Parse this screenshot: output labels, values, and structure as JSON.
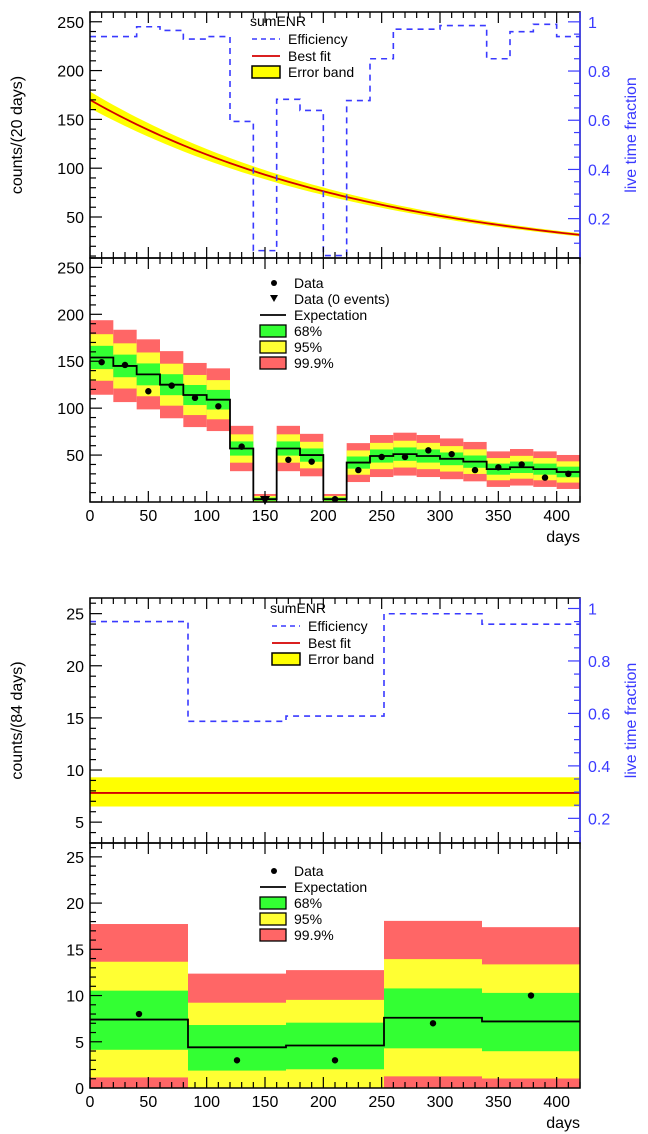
{
  "chart_data": [
    {
      "id": "top",
      "type": "line",
      "title": "sumENR",
      "ylabel": "counts/(20 days)",
      "y2label": "live time fraction",
      "xlabel": "",
      "xlim": [
        0,
        420
      ],
      "ylim": [
        8,
        260
      ],
      "y2lim": [
        0.04,
        1.04
      ],
      "yticks": [
        50,
        100,
        150,
        200,
        250
      ],
      "y2ticks": [
        "0.2",
        "0.4",
        "0.6",
        "0.8",
        "1"
      ],
      "legend": [
        "Efficiency",
        "Best fit",
        "Error band"
      ],
      "efficiency": [
        {
          "x0": 0,
          "x1": 20,
          "v": 0.94
        },
        {
          "x0": 20,
          "x1": 40,
          "v": 0.94
        },
        {
          "x0": 40,
          "x1": 60,
          "v": 0.98
        },
        {
          "x0": 60,
          "x1": 80,
          "v": 0.965
        },
        {
          "x0": 80,
          "x1": 100,
          "v": 0.93
        },
        {
          "x0": 100,
          "x1": 120,
          "v": 0.94
        },
        {
          "x0": 120,
          "x1": 140,
          "v": 0.595
        },
        {
          "x0": 140,
          "x1": 160,
          "v": 0.07
        },
        {
          "x0": 160,
          "x1": 180,
          "v": 0.685
        },
        {
          "x0": 180,
          "x1": 200,
          "v": 0.64
        },
        {
          "x0": 200,
          "x1": 220,
          "v": 0.05
        },
        {
          "x0": 220,
          "x1": 240,
          "v": 0.68
        },
        {
          "x0": 240,
          "x1": 260,
          "v": 0.85
        },
        {
          "x0": 260,
          "x1": 280,
          "v": 0.97
        },
        {
          "x0": 280,
          "x1": 300,
          "v": 0.97
        },
        {
          "x0": 300,
          "x1": 320,
          "v": 0.985
        },
        {
          "x0": 320,
          "x1": 340,
          "v": 0.985
        },
        {
          "x0": 340,
          "x1": 360,
          "v": 0.85
        },
        {
          "x0": 360,
          "x1": 380,
          "v": 0.96
        },
        {
          "x0": 380,
          "x1": 400,
          "v": 0.99
        },
        {
          "x0": 400,
          "x1": 420,
          "v": 0.94
        }
      ],
      "fit": {
        "kind": "exp",
        "a": 170,
        "tau": 250,
        "band": 0.05
      }
    },
    {
      "id": "bottom1",
      "type": "bar",
      "xlabel": "days",
      "xlim": [
        0,
        420
      ],
      "ylim": [
        0,
        260
      ],
      "xticks": [
        0,
        50,
        100,
        150,
        200,
        250,
        300,
        350,
        400
      ],
      "yticks": [
        50,
        100,
        150,
        200,
        250
      ],
      "legend": [
        "Data",
        "Data (0 events)",
        "Expectation",
        "68%",
        "95%",
        "99.9%"
      ],
      "bins": [
        {
          "x0": 0,
          "x1": 20,
          "exp": 154
        },
        {
          "x0": 20,
          "x1": 40,
          "exp": 145
        },
        {
          "x0": 40,
          "x1": 60,
          "exp": 136
        },
        {
          "x0": 60,
          "x1": 80,
          "exp": 125
        },
        {
          "x0": 80,
          "x1": 100,
          "exp": 114
        },
        {
          "x0": 100,
          "x1": 120,
          "exp": 109
        },
        {
          "x0": 120,
          "x1": 140,
          "exp": 57
        },
        {
          "x0": 140,
          "x1": 160,
          "exp": 3
        },
        {
          "x0": 160,
          "x1": 180,
          "exp": 57
        },
        {
          "x0": 180,
          "x1": 200,
          "exp": 50
        },
        {
          "x0": 200,
          "x1": 220,
          "exp": 3
        },
        {
          "x0": 220,
          "x1": 240,
          "exp": 42
        },
        {
          "x0": 240,
          "x1": 260,
          "exp": 49
        },
        {
          "x0": 260,
          "x1": 280,
          "exp": 51
        },
        {
          "x0": 280,
          "x1": 300,
          "exp": 49
        },
        {
          "x0": 300,
          "x1": 320,
          "exp": 46
        },
        {
          "x0": 320,
          "x1": 340,
          "exp": 43
        },
        {
          "x0": 340,
          "x1": 360,
          "exp": 35
        },
        {
          "x0": 360,
          "x1": 380,
          "exp": 37
        },
        {
          "x0": 380,
          "x1": 400,
          "exp": 35
        },
        {
          "x0": 400,
          "x1": 420,
          "exp": 32
        }
      ],
      "data": [
        {
          "x": 10,
          "y": 149
        },
        {
          "x": 30,
          "y": 146
        },
        {
          "x": 50,
          "y": 118
        },
        {
          "x": 70,
          "y": 124
        },
        {
          "x": 90,
          "y": 111
        },
        {
          "x": 110,
          "y": 102
        },
        {
          "x": 130,
          "y": 59
        },
        {
          "x": 170,
          "y": 45
        },
        {
          "x": 190,
          "y": 43
        },
        {
          "x": 210,
          "y": 3
        },
        {
          "x": 230,
          "y": 34
        },
        {
          "x": 250,
          "y": 48
        },
        {
          "x": 270,
          "y": 48
        },
        {
          "x": 290,
          "y": 55
        },
        {
          "x": 310,
          "y": 51
        },
        {
          "x": 330,
          "y": 34
        },
        {
          "x": 350,
          "y": 37
        },
        {
          "x": 370,
          "y": 40
        },
        {
          "x": 390,
          "y": 26
        },
        {
          "x": 410,
          "y": 30
        }
      ],
      "zero_events": [
        {
          "x": 150,
          "y": 0
        }
      ]
    },
    {
      "id": "top2",
      "type": "line",
      "title": "sumENR",
      "ylabel": "counts/(84 days)",
      "y2label": "live time fraction",
      "xlabel": "",
      "xlim": [
        0,
        420
      ],
      "ylim": [
        3,
        26.5
      ],
      "y2lim": [
        0.106,
        1.04
      ],
      "yticks": [
        5,
        10,
        15,
        20,
        25
      ],
      "y2ticks": [
        "0.2",
        "0.4",
        "0.6",
        "0.8",
        "1"
      ],
      "legend": [
        "Efficiency",
        "Best fit",
        "Error band"
      ],
      "efficiency": [
        {
          "x0": 0,
          "x1": 84,
          "v": 0.95
        },
        {
          "x0": 84,
          "x1": 168,
          "v": 0.57
        },
        {
          "x0": 168,
          "x1": 252,
          "v": 0.59
        },
        {
          "x0": 252,
          "x1": 336,
          "v": 0.98
        },
        {
          "x0": 336,
          "x1": 420,
          "v": 0.94
        }
      ],
      "fit": {
        "kind": "const",
        "a": 7.8,
        "lo": 6.5,
        "hi": 9.3
      }
    },
    {
      "id": "bottom2",
      "type": "bar",
      "xlabel": "days",
      "xlim": [
        0,
        420
      ],
      "ylim": [
        0,
        26.5
      ],
      "xticks": [
        0,
        50,
        100,
        150,
        200,
        250,
        300,
        350,
        400
      ],
      "yticks": [
        0,
        5,
        10,
        15,
        20,
        25
      ],
      "legend": [
        "Data",
        "Expectation",
        "68%",
        "95%",
        "99.9%"
      ],
      "bins": [
        {
          "x0": 0,
          "x1": 84,
          "exp": 7.4
        },
        {
          "x0": 84,
          "x1": 168,
          "exp": 4.4
        },
        {
          "x0": 168,
          "x1": 252,
          "exp": 4.6
        },
        {
          "x0": 252,
          "x1": 336,
          "exp": 7.6
        },
        {
          "x0": 336,
          "x1": 420,
          "exp": 7.2
        }
      ],
      "data": [
        {
          "x": 42,
          "y": 8
        },
        {
          "x": 126,
          "y": 3
        },
        {
          "x": 210,
          "y": 3
        },
        {
          "x": 294,
          "y": 7
        },
        {
          "x": 378,
          "y": 10
        }
      ],
      "zero_events": []
    }
  ],
  "colors": {
    "efficiency": "#3a3aff",
    "fit": "#d40000",
    "band_fit": "#ffff00",
    "c68": "#33ff33",
    "c95": "#ffff33",
    "c999": "#ff6666",
    "axis2": "#3a3aff"
  }
}
